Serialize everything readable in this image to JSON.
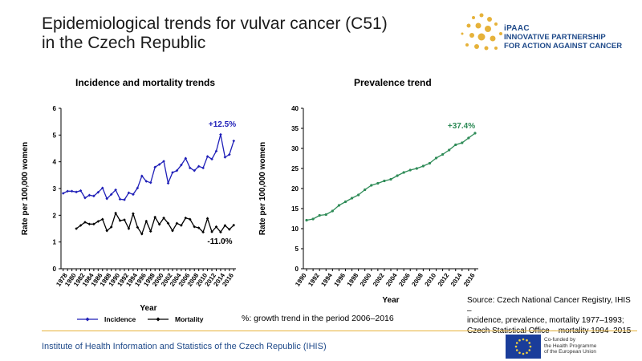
{
  "page": {
    "title_line1": "Epidemiological trends for vulvar cancer (C51)",
    "title_line2": "in the Czech Republic",
    "logo": {
      "brand": "iPAAC",
      "line1": "INNOVATIVE PARTNERSHIP",
      "line2": "FOR ACTION AGAINST CANCER",
      "color": "#1f4a8a",
      "dots_color": "#e6b23a"
    },
    "note": "%: growth trend in the period 2006–2016",
    "source_lines": [
      "Source: Czech National Cancer Registry, IHIS –",
      "incidence, prevalence, mortality 1977–1993;",
      "Czech Statistical Office – mortality 1994–2015"
    ],
    "footer": "Institute of Health Information and Statistics of the Czech Republic (IHIS)",
    "eu_text": [
      "Co-funded by",
      "the Health Programme",
      "of the European Union"
    ]
  },
  "chart_data": [
    {
      "type": "line",
      "title": "Incidence and mortality trends",
      "xlabel": "Year",
      "ylabel": "Rate per 100,000 women",
      "ylim": [
        0,
        6
      ],
      "yticks": [
        0,
        1,
        2,
        3,
        4,
        5,
        6
      ],
      "xticks": [
        "1978",
        "1980",
        "1982",
        "1984",
        "1986",
        "1988",
        "1990",
        "1992",
        "1994",
        "1996",
        "1998",
        "2000",
        "2002",
        "2004",
        "2006",
        "2008",
        "2010",
        "2012",
        "2014",
        "2016"
      ],
      "x": [
        1977,
        1978,
        1979,
        1980,
        1981,
        1982,
        1983,
        1984,
        1985,
        1986,
        1987,
        1988,
        1989,
        1990,
        1991,
        1992,
        1993,
        1994,
        1995,
        1996,
        1997,
        1998,
        1999,
        2000,
        2001,
        2002,
        2003,
        2004,
        2005,
        2006,
        2007,
        2008,
        2009,
        2010,
        2011,
        2012,
        2013,
        2014,
        2015,
        2016
      ],
      "series": [
        {
          "name": "Incidence",
          "color": "#1f1fb8",
          "marker": "diamond",
          "values": [
            2.82,
            2.9,
            2.9,
            2.87,
            2.92,
            2.65,
            2.75,
            2.72,
            2.86,
            3.02,
            2.62,
            2.78,
            2.95,
            2.6,
            2.58,
            2.84,
            2.78,
            3.02,
            3.47,
            3.27,
            3.22,
            3.8,
            3.9,
            4.02,
            3.2,
            3.6,
            3.67,
            3.88,
            4.13,
            3.77,
            3.67,
            3.83,
            3.77,
            4.2,
            4.1,
            4.4,
            5.02,
            4.17,
            4.27,
            4.78
          ]
        },
        {
          "name": "Mortality",
          "color": "#000000",
          "marker": "diamond",
          "values": [
            null,
            null,
            null,
            1.5,
            1.62,
            1.74,
            1.67,
            1.67,
            1.77,
            1.85,
            1.42,
            1.56,
            2.08,
            1.8,
            1.83,
            1.5,
            2.06,
            1.55,
            1.3,
            1.78,
            1.4,
            1.93,
            1.66,
            1.9,
            1.7,
            1.42,
            1.7,
            1.62,
            1.9,
            1.85,
            1.57,
            1.53,
            1.37,
            1.88,
            1.38,
            1.57,
            1.37,
            1.62,
            1.47,
            1.63
          ]
        }
      ],
      "annotations": [
        {
          "text": "+12.5%",
          "series": "Incidence",
          "color": "#1f1fb8"
        },
        {
          "text": "-11.0%",
          "series": "Mortality",
          "color": "#000000"
        }
      ],
      "legend": "bottom"
    },
    {
      "type": "line",
      "title": "Prevalence trend",
      "xlabel": "Year",
      "ylabel": "Rate per 100,000 women",
      "ylim": [
        0,
        40
      ],
      "yticks": [
        0,
        5,
        10,
        15,
        20,
        25,
        30,
        35,
        40
      ],
      "xticks": [
        "1990",
        "1992",
        "1994",
        "1996",
        "1998",
        "2000",
        "2002",
        "2004",
        "2006",
        "2008",
        "2010",
        "2012",
        "2014",
        "2016"
      ],
      "x": [
        1990,
        1991,
        1992,
        1993,
        1994,
        1995,
        1996,
        1997,
        1998,
        1999,
        2000,
        2001,
        2002,
        2003,
        2004,
        2005,
        2006,
        2007,
        2008,
        2009,
        2010,
        2011,
        2012,
        2013,
        2014,
        2015,
        2016
      ],
      "series": [
        {
          "color": "#2e8b57",
          "marker": "circle",
          "values": [
            12.1,
            12.4,
            13.3,
            13.5,
            14.4,
            15.8,
            16.7,
            17.6,
            18.4,
            19.7,
            20.8,
            21.3,
            21.9,
            22.3,
            23.2,
            24.0,
            24.6,
            25.0,
            25.6,
            26.3,
            27.6,
            28.5,
            29.6,
            30.9,
            31.4,
            32.6,
            33.8
          ]
        }
      ],
      "annotations": [
        {
          "text": "+37.4%",
          "color": "#2e8b57"
        }
      ]
    }
  ]
}
